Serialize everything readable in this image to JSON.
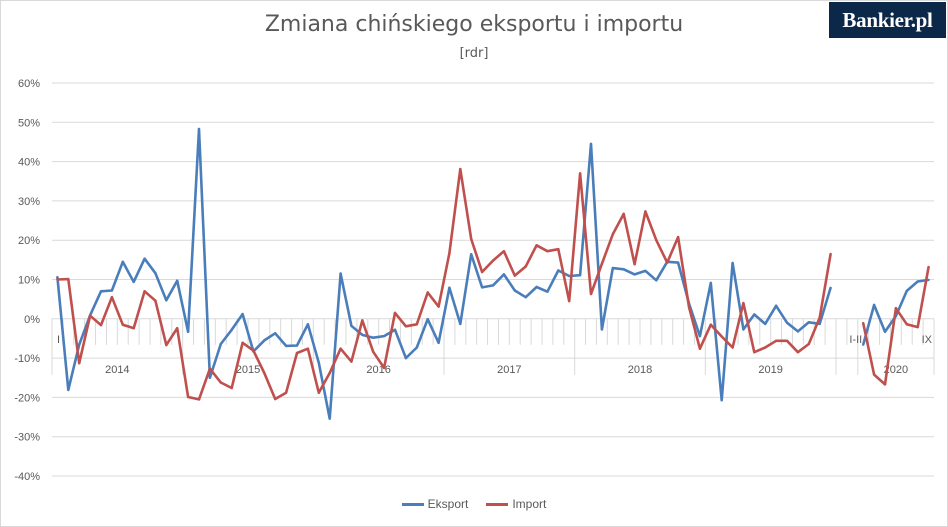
{
  "page": {
    "title": "Zmiana chińskiego eksportu i importu",
    "subtitle": "[rdr]",
    "logo_text": "Bankier.pl"
  },
  "chart_data": {
    "type": "line",
    "title": "Zmiana chińskiego eksportu i importu",
    "subtitle": "[rdr]",
    "ylim": [
      -40,
      60
    ],
    "y_ticks": [
      60,
      50,
      40,
      30,
      20,
      10,
      0,
      -10,
      -20,
      -30,
      -40
    ],
    "y_tick_labels": [
      "60%",
      "50%",
      "40%",
      "30%",
      "20%",
      "10%",
      "0%",
      "-10%",
      "-20%",
      "-30%",
      "-40%"
    ],
    "y_unit": "%",
    "grid": true,
    "legend_position": "bottom",
    "x_labels": [
      "I",
      "2014",
      "2015",
      "2016",
      "2017",
      "2018",
      "2019",
      "I-II",
      "2020",
      "IX"
    ],
    "series": [
      {
        "name": "Eksport",
        "color": "#4a7ebb",
        "segments": [
          [
            10.6,
            -18.1,
            -6.6,
            0.9,
            7.0,
            7.2,
            14.5,
            9.4,
            15.3,
            11.6,
            4.7,
            9.7,
            -3.3,
            48.3,
            -15.0,
            -6.4,
            -2.8,
            1.2,
            -8.3,
            -5.5,
            -3.7,
            -6.9,
            -6.8,
            -1.4,
            -11.2,
            -25.4,
            11.5,
            -1.8,
            -4.1,
            -4.8,
            -4.4,
            -2.8,
            -10.0,
            -7.3,
            -0.1,
            -6.1,
            7.9,
            -1.3,
            16.4,
            8.0,
            8.5,
            11.3,
            7.2,
            5.5,
            8.1,
            6.9,
            12.3,
            10.9,
            11.1,
            44.5,
            -2.7,
            12.9,
            12.6,
            11.3,
            12.2,
            9.8,
            14.5,
            14.3,
            3.9,
            -4.4,
            9.1,
            -20.7,
            14.2,
            -2.7,
            1.1,
            -1.3,
            3.3,
            -1.0,
            -3.2,
            -0.9,
            -1.3,
            7.9
          ],
          [
            -6.6,
            3.5,
            -3.3,
            0.7,
            7.1,
            9.5,
            9.9
          ]
        ]
      },
      {
        "name": "Import",
        "color": "#c0504d",
        "segments": [
          [
            10.0,
            10.1,
            -11.3,
            0.8,
            -1.6,
            5.5,
            -1.5,
            -2.4,
            7.0,
            4.6,
            -6.7,
            -2.4,
            -19.9,
            -20.5,
            -12.7,
            -16.2,
            -17.6,
            -6.1,
            -8.1,
            -13.8,
            -20.4,
            -18.8,
            -8.7,
            -7.6,
            -18.8,
            -13.8,
            -7.6,
            -10.9,
            -0.4,
            -8.4,
            -12.5,
            1.5,
            -1.9,
            -1.4,
            6.7,
            3.1,
            16.7,
            38.1,
            20.3,
            11.9,
            14.8,
            17.2,
            11.0,
            13.3,
            18.7,
            17.2,
            17.7,
            4.5,
            37.0,
            6.3,
            14.0,
            21.5,
            26.7,
            13.9,
            27.3,
            20.0,
            14.3,
            20.8,
            3.0,
            -7.6,
            -1.5,
            -4.5,
            -7.3,
            4.0,
            -8.5,
            -7.3,
            -5.6,
            -5.6,
            -8.5,
            -6.4,
            0.3,
            16.5
          ],
          [
            -1.1,
            -14.2,
            -16.7,
            2.7,
            -1.4,
            -2.1,
            13.2
          ]
        ]
      }
    ]
  }
}
